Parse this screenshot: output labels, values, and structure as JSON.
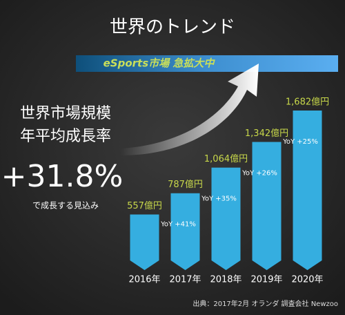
{
  "title": "世界のトレンド",
  "banner": "eSports市場 急拡大中",
  "side_text": {
    "line1": "世界市場規模",
    "line2": "年平均成長率",
    "rate": "+31.8%",
    "note": "で成長する見込み"
  },
  "source": "出典：2017年2月 オランダ 調査会社 Newzoo",
  "chart_data": {
    "type": "bar",
    "categories": [
      "2016年",
      "2017年",
      "2018年",
      "2019年",
      "2020年"
    ],
    "values": [
      557,
      787,
      1064,
      1342,
      1682
    ],
    "value_labels": [
      "557億円",
      "787億円",
      "1,064億円",
      "1,342億円",
      "1,682億円"
    ],
    "yoy_labels": [
      null,
      "YoY +41%",
      "YoY +35%",
      "YoY +26%",
      "YoY +25%"
    ],
    "color": "#35aee0"
  }
}
